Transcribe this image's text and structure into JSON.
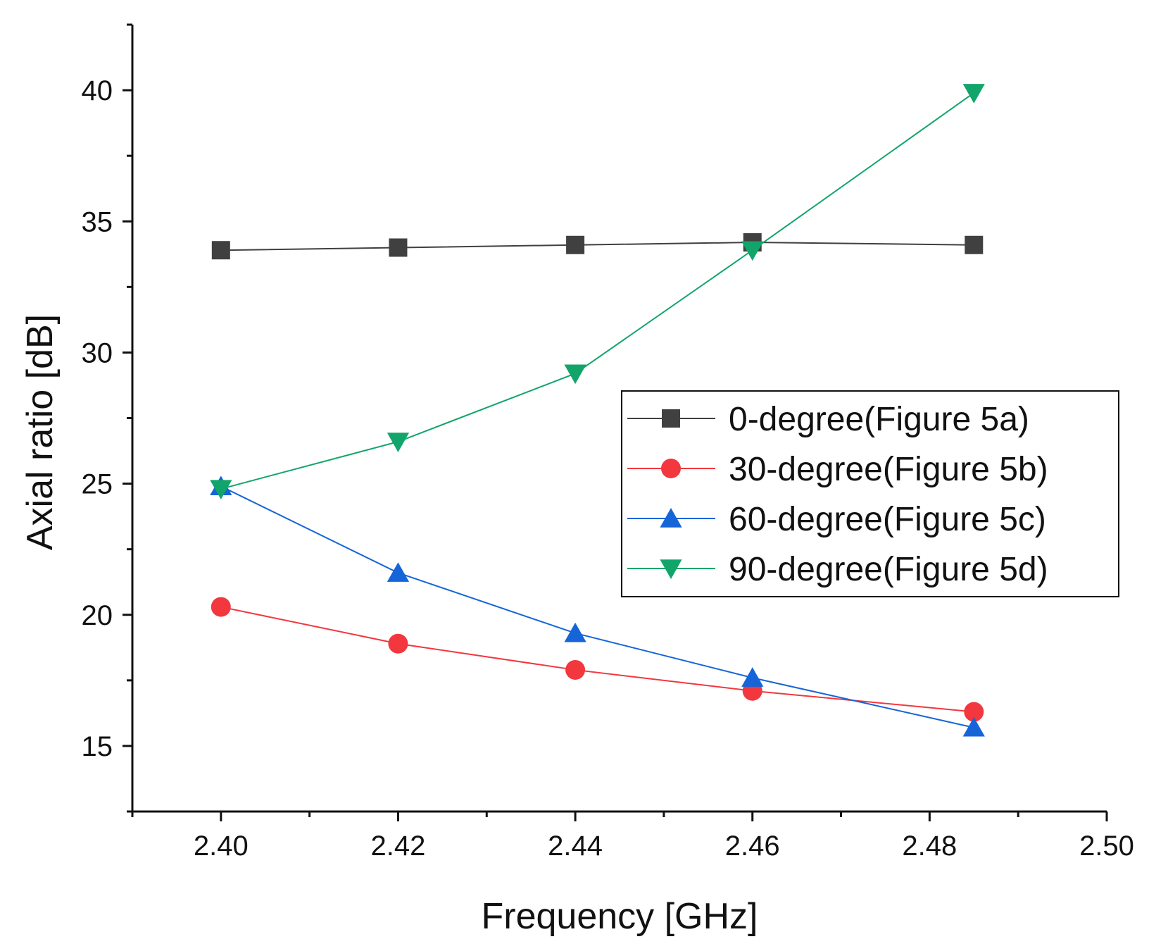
{
  "chart_data": {
    "type": "line",
    "title": "",
    "xlabel": "Frequency [GHz]",
    "ylabel": "Axial ratio [dB]",
    "xlim": [
      2.39,
      2.5
    ],
    "ylim": [
      12.5,
      42.5
    ],
    "x_ticks": [
      2.4,
      2.42,
      2.44,
      2.46,
      2.48,
      2.5
    ],
    "x_tick_labels": [
      "2.40",
      "2.42",
      "2.44",
      "2.46",
      "2.48",
      "2.50"
    ],
    "y_ticks": [
      15,
      20,
      25,
      30,
      35,
      40
    ],
    "y_tick_labels": [
      "15",
      "20",
      "25",
      "30",
      "35",
      "40"
    ],
    "grid": false,
    "legend_position": "center-right",
    "x": [
      2.4,
      2.42,
      2.44,
      2.46,
      2.485
    ],
    "series": [
      {
        "name": "0-degree(Figure 5a)",
        "color": "#404040",
        "marker": "square",
        "values": [
          33.9,
          34.0,
          34.1,
          34.2,
          34.1
        ]
      },
      {
        "name": "30-degree(Figure 5b)",
        "color": "#f2373f",
        "marker": "circle",
        "values": [
          20.3,
          18.9,
          17.9,
          17.1,
          16.3
        ]
      },
      {
        "name": "60-degree(Figure 5c)",
        "color": "#1565d8",
        "marker": "triangle-up",
        "values": [
          24.9,
          21.6,
          19.3,
          17.6,
          15.7
        ]
      },
      {
        "name": "90-degree(Figure 5d)",
        "color": "#12a56b",
        "marker": "triangle-down",
        "values": [
          24.8,
          26.6,
          29.2,
          33.9,
          39.9
        ]
      }
    ]
  }
}
